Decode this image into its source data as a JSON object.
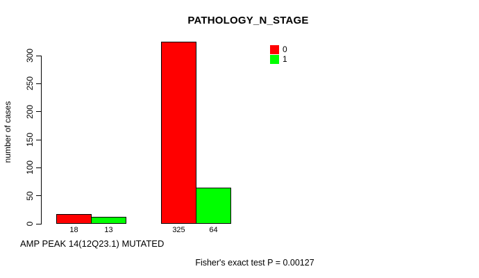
{
  "chart_data": {
    "type": "bar",
    "title": "PATHOLOGY_N_STAGE",
    "ylabel": "number of cases",
    "xlabel": "AMP PEAK 14(12Q23.1) MUTATED",
    "annotation": "Fisher's exact test P = 0.00127",
    "ylim": [
      0,
      300
    ],
    "yticks": [
      0,
      50,
      100,
      150,
      200,
      250,
      300
    ],
    "grid": false,
    "legend_position": "top-right",
    "legend": [
      {
        "name": "0",
        "color": "#ff0000"
      },
      {
        "name": "1",
        "color": "#00ff00"
      }
    ],
    "series": [
      {
        "name": "0",
        "color": "#ff0000",
        "values": [
          18,
          325
        ]
      },
      {
        "name": "1",
        "color": "#00ff00",
        "values": [
          13,
          64
        ]
      }
    ],
    "groups": [
      {
        "bars": [
          {
            "series": "0",
            "value": 18,
            "label": "18",
            "color": "#ff0000"
          },
          {
            "series": "1",
            "value": 13,
            "label": "13",
            "color": "#00ff00"
          }
        ]
      },
      {
        "bars": [
          {
            "series": "0",
            "value": 325,
            "label": "325",
            "color": "#ff0000"
          },
          {
            "series": "1",
            "value": 64,
            "label": "64",
            "color": "#00ff00"
          }
        ]
      }
    ],
    "colors": {
      "axis": "#000000",
      "text": "#000000",
      "background": "#ffffff"
    }
  }
}
